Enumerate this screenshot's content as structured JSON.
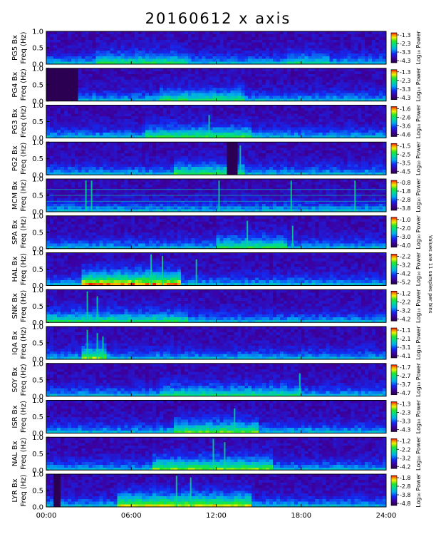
{
  "title": "20160612 x axis",
  "side_note": "Values are 11 samples per bins",
  "chart_data": {
    "type": "heatmap",
    "x": {
      "ticks": [
        "00:00",
        "06:00",
        "12:00",
        "18:00",
        "24:00"
      ],
      "tick_hours": [
        0,
        6,
        12,
        18,
        24
      ],
      "range_hours": [
        0,
        24
      ]
    },
    "y": {
      "ticks": [
        "0.0",
        "0.5",
        "1.0"
      ],
      "tick_values": [
        0.0,
        0.5,
        1.0
      ],
      "range_hz": [
        0,
        1.0
      ]
    },
    "colorbar_label": "Log₁₀ Power",
    "panels": [
      {
        "station": "PG5",
        "ylabel_top": "PG5 Bx",
        "ylabel_bottom": "Freq (Hz)",
        "colorbar_ticks": [
          "-1.3",
          "-2.3",
          "-3.3",
          "-4.3"
        ],
        "activity": [
          [
            3.5,
            10,
            0.35
          ],
          [
            17,
            20,
            0.25
          ]
        ],
        "bursts": [],
        "dark_gaps": []
      },
      {
        "station": "PG4",
        "ylabel_top": "PG4 Bx",
        "ylabel_bottom": "Freq (Hz)",
        "colorbar_ticks": [
          "-1.3",
          "-2.3",
          "-3.3",
          "-4.3"
        ],
        "activity": [
          [
            8,
            14,
            0.35
          ]
        ],
        "bursts": [],
        "dark_gaps": [
          [
            0,
            2.2
          ]
        ]
      },
      {
        "station": "PG3",
        "ylabel_top": "PG3 Bx",
        "ylabel_bottom": "Freq (Hz)",
        "colorbar_ticks": [
          "-1.6",
          "-2.6",
          "-3.6",
          "-4.6"
        ],
        "activity": [
          [
            7,
            14.5,
            0.4
          ]
        ],
        "bursts": [
          [
            11.5,
            0.7
          ]
        ],
        "dark_gaps": []
      },
      {
        "station": "PG2",
        "ylabel_top": "PG2 Bx",
        "ylabel_bottom": "Freq (Hz)",
        "colorbar_ticks": [
          "-1.5",
          "-2.5",
          "-3.5",
          "-4.5"
        ],
        "activity": [
          [
            9,
            14,
            0.4
          ]
        ],
        "bursts": [
          [
            13.7,
            0.9
          ]
        ],
        "dark_gaps": [
          [
            13.0,
            13.3
          ]
        ]
      },
      {
        "station": "MCM",
        "ylabel_top": "MCM Bx",
        "ylabel_bottom": "Freq (Hz)",
        "colorbar_ticks": [
          "-0.8",
          "-1.8",
          "-2.8",
          "-3.8"
        ],
        "activity": [],
        "bursts": [
          [
            2.8,
            0.95
          ],
          [
            3.2,
            0.95
          ],
          [
            12.2,
            0.95
          ],
          [
            17.3,
            0.95
          ],
          [
            21.8,
            0.95
          ]
        ],
        "dark_gaps": []
      },
      {
        "station": "SPA",
        "ylabel_top": "SPA Bx",
        "ylabel_bottom": "Freq (Hz)",
        "colorbar_ticks": [
          "-1.0",
          "-2.0",
          "-3.0",
          "-4.0"
        ],
        "activity": [
          [
            12,
            17,
            0.4
          ]
        ],
        "bursts": [
          [
            14.2,
            0.85
          ],
          [
            17.4,
            0.7
          ]
        ],
        "dark_gaps": []
      },
      {
        "station": "HAL",
        "ylabel_top": "HAL Bx",
        "ylabel_bottom": "Freq (Hz)",
        "colorbar_ticks": [
          "-2.2",
          "-3.2",
          "-4.2",
          "-5.2"
        ],
        "activity": [
          [
            2.5,
            9.5,
            0.9
          ]
        ],
        "bursts": [
          [
            7.4,
            0.95
          ],
          [
            8.2,
            0.9
          ],
          [
            10.6,
            0.8
          ]
        ],
        "dark_gaps": []
      },
      {
        "station": "SNK",
        "ylabel_top": "SNK Bx",
        "ylabel_bottom": "Freq (Hz)",
        "colorbar_ticks": [
          "-1.2",
          "-2.2",
          "-3.2",
          "-4.2"
        ],
        "activity": [
          [
            0,
            10,
            0.35
          ]
        ],
        "bursts": [
          [
            2.9,
            0.95
          ],
          [
            3.6,
            0.8
          ]
        ],
        "dark_gaps": []
      },
      {
        "station": "IQA",
        "ylabel_top": "IQA Bx",
        "ylabel_bottom": "Freq (Hz)",
        "colorbar_ticks": [
          "-1.1",
          "-2.1",
          "-3.1",
          "-4.1"
        ],
        "activity": [
          [
            2.6,
            4.3,
            0.6
          ]
        ],
        "bursts": [
          [
            2.9,
            0.9
          ],
          [
            3.6,
            0.8
          ],
          [
            4.0,
            0.7
          ]
        ],
        "dark_gaps": []
      },
      {
        "station": "SOY",
        "ylabel_top": "SOY Bx",
        "ylabel_bottom": "Freq (Hz)",
        "colorbar_ticks": [
          "-1.7",
          "-2.7",
          "-3.7",
          "-4.7"
        ],
        "activity": [
          [
            8,
            18,
            0.3
          ]
        ],
        "bursts": [
          [
            17.9,
            0.7
          ]
        ],
        "dark_gaps": []
      },
      {
        "station": "ISR",
        "ylabel_top": "ISR Bx",
        "ylabel_bottom": "Freq (Hz)",
        "colorbar_ticks": [
          "-1.3",
          "-2.3",
          "-3.3",
          "-4.3"
        ],
        "activity": [
          [
            9,
            15,
            0.5
          ]
        ],
        "bursts": [
          [
            13.3,
            0.75
          ]
        ],
        "dark_gaps": []
      },
      {
        "station": "NAL",
        "ylabel_top": "NAL Bx",
        "ylabel_bottom": "Freq (Hz)",
        "colorbar_ticks": [
          "-1.2",
          "-2.2",
          "-3.2",
          "-4.2"
        ],
        "activity": [
          [
            7.5,
            16,
            0.55
          ]
        ],
        "bursts": [
          [
            11.8,
            0.95
          ],
          [
            12.6,
            0.85
          ]
        ],
        "dark_gaps": []
      },
      {
        "station": "LYR",
        "ylabel_top": "LYR Bx",
        "ylabel_bottom": "Freq (Hz)",
        "colorbar_ticks": [
          "-1.8",
          "-2.8",
          "-3.8",
          "-4.8"
        ],
        "activity": [
          [
            5,
            14.5,
            0.7
          ]
        ],
        "bursts": [
          [
            9.2,
            0.95
          ],
          [
            10.2,
            0.9
          ]
        ],
        "dark_gaps": [
          [
            0.6,
            0.8
          ]
        ]
      }
    ]
  }
}
